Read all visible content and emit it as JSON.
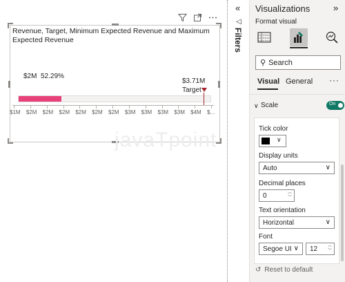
{
  "visual": {
    "title": "Revenue, Target, Minimum Expected Revenue and Maximum Expected Revenue",
    "header_icons": [
      "filter-icon",
      "focus-mode-icon",
      "more-options-icon"
    ],
    "value_label": "$2M",
    "percent_label": "52.29%",
    "target_value": "$3.71M",
    "target_label": "Target",
    "fill_fraction": 0.2229,
    "target_fraction": 0.955,
    "fill_color": "#e8417a",
    "target_color": "#a4262c",
    "axis_ticks": [
      "$1M",
      "$2M",
      "$2M",
      "$2M",
      "$2M",
      "$2M",
      "$2M",
      "$3M",
      "$3M",
      "$3M",
      "$3M",
      "$4M",
      "$..."
    ]
  },
  "watermark": "javaTpoint",
  "filters": {
    "collapse_icon": "double-chevron-left-icon",
    "label": "Filters"
  },
  "viz_pane": {
    "title": "Visualizations",
    "expand_icon": "double-chevron-right-icon",
    "subtitle": "Format visual",
    "search_placeholder": "Search",
    "tabs": {
      "visual": "Visual",
      "general": "General",
      "more": "···"
    },
    "scale": {
      "label": "Scale",
      "toggle_text": "On",
      "toggle_color": "#117865",
      "tick_color_label": "Tick color",
      "tick_color_value": "#000000",
      "display_units_label": "Display units",
      "display_units_value": "Auto",
      "decimal_places_label": "Decimal places",
      "decimal_places_value": "0",
      "text_orientation_label": "Text orientation",
      "text_orientation_value": "Horizontal",
      "font_label": "Font",
      "font_value": "Segoe UI",
      "font_size_value": "12"
    },
    "reset_label": "Reset to default"
  }
}
